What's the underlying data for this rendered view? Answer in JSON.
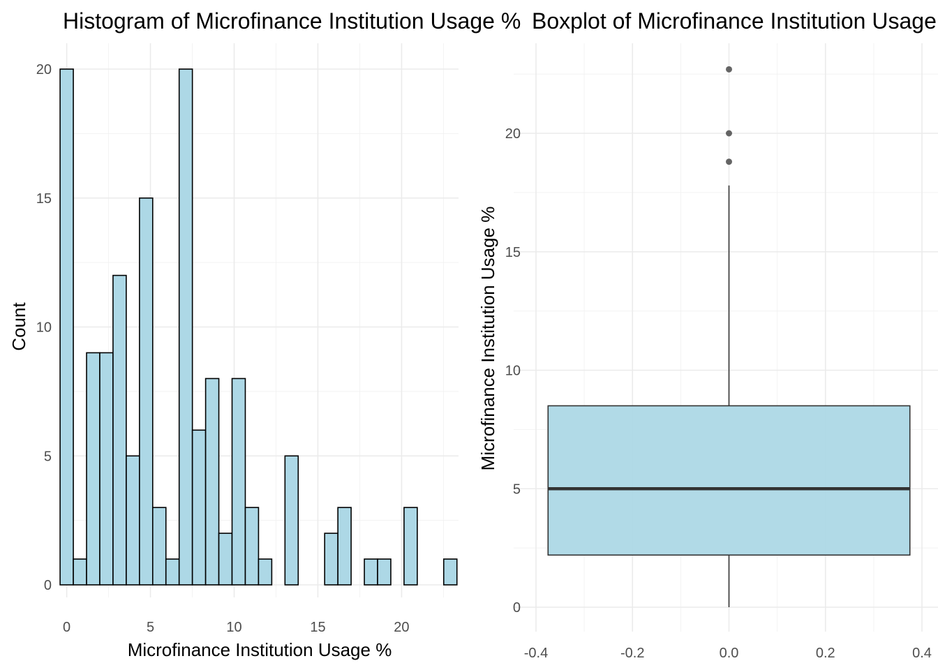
{
  "chart_data": [
    {
      "type": "bar",
      "title": "Histogram of Microfinance Institution Usage %",
      "xlabel": "Microfinance Institution Usage %",
      "ylabel": "Count",
      "xlim": [
        -0.4,
        23.4
      ],
      "ylim": [
        0,
        20
      ],
      "x_ticks": [
        "0",
        "5",
        "10",
        "15",
        "20"
      ],
      "y_ticks": [
        "0",
        "5",
        "10",
        "15",
        "20"
      ],
      "bin_width": 0.79,
      "bin_centers": [
        0.0,
        0.79,
        1.58,
        2.37,
        3.16,
        3.95,
        4.74,
        5.53,
        6.32,
        7.11,
        7.9,
        8.69,
        9.48,
        10.27,
        11.06,
        11.85,
        12.64,
        13.43,
        14.22,
        15.01,
        15.8,
        16.59,
        17.38,
        18.17,
        18.96,
        19.75,
        20.54,
        21.33,
        22.12,
        22.91
      ],
      "values": [
        20,
        1,
        9,
        9,
        12,
        5,
        15,
        3,
        1,
        20,
        6,
        8,
        2,
        8,
        3,
        1,
        0,
        5,
        0,
        0,
        2,
        3,
        0,
        1,
        1,
        0,
        3,
        0,
        0,
        1
      ],
      "fill": "#add8e6",
      "outline": "#000000",
      "grid": true
    },
    {
      "type": "boxplot",
      "title": "Boxplot of Microfinance Institution Usage %",
      "xlabel": "",
      "ylabel": "Microfinance Institution Usage %",
      "xlim": [
        -0.4,
        0.4
      ],
      "ylim": [
        0,
        22.8
      ],
      "x_ticks": [
        "-0.4",
        "-0.2",
        "0.0",
        "0.2",
        "0.4"
      ],
      "y_ticks": [
        "0",
        "5",
        "10",
        "15",
        "20"
      ],
      "x_center": 0,
      "box_half_width": 0.375,
      "whisker_low": 0,
      "q1": 2.2,
      "median": 5.0,
      "q3": 8.5,
      "whisker_high": 17.8,
      "outliers": [
        18.8,
        20.0,
        22.7
      ],
      "fill": "#add8e6",
      "outline": "#333333",
      "grid": true
    }
  ]
}
